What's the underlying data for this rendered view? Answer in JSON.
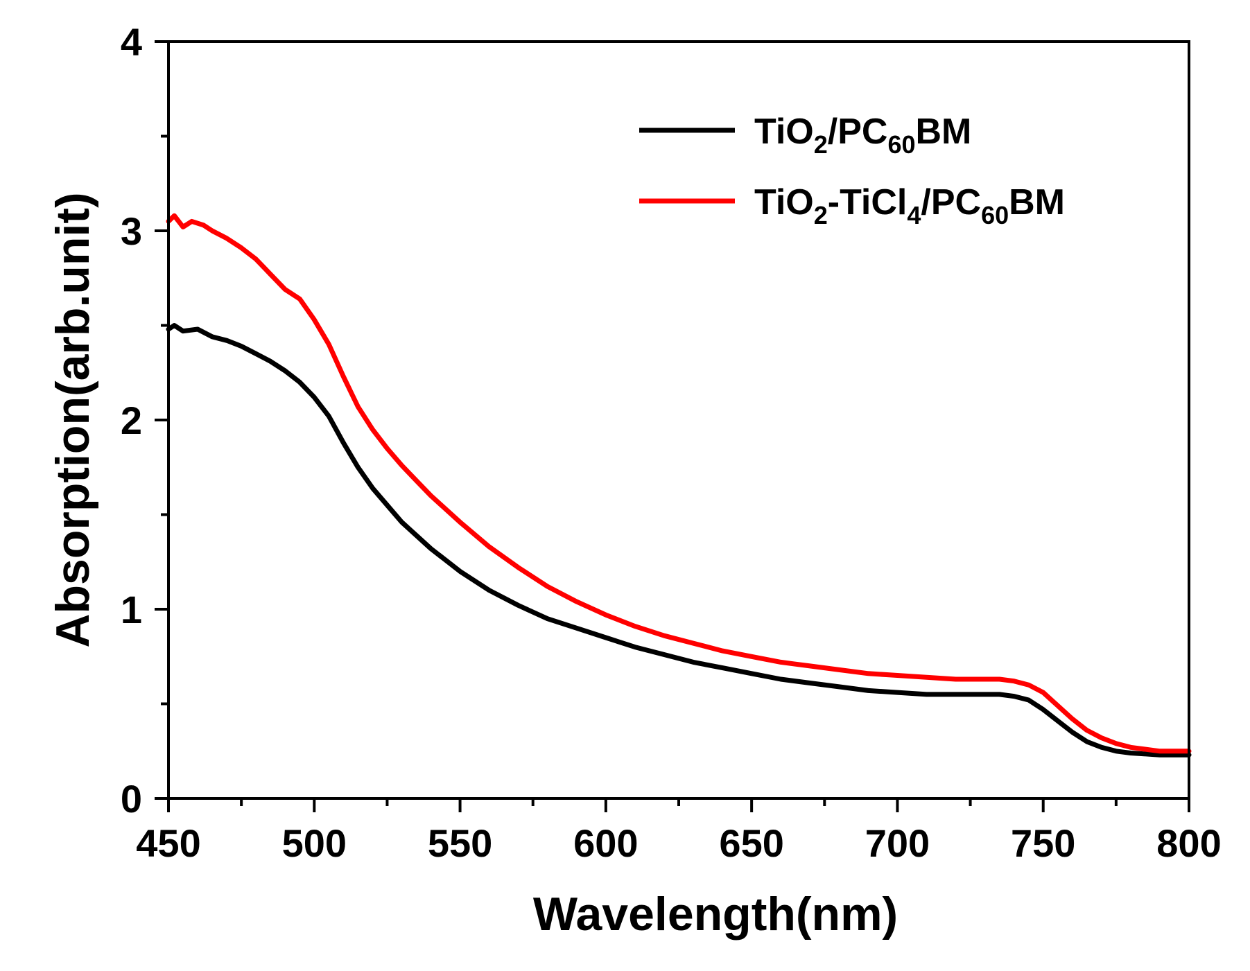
{
  "chart_data": {
    "type": "line",
    "title": "",
    "xlabel": "Wavelength(nm)",
    "ylabel": "Absorption(arb.unit)",
    "xlim": [
      450,
      800
    ],
    "ylim": [
      0,
      4
    ],
    "x_ticks": [
      450,
      500,
      550,
      600,
      650,
      700,
      750,
      800
    ],
    "x_minor_step": 25,
    "y_ticks": [
      0,
      1,
      2,
      3,
      4
    ],
    "y_minor_step": 0.5,
    "grid": false,
    "legend_position": "top-right",
    "series": [
      {
        "name": "TiO2/PC60BM",
        "color": "#000000",
        "legend": [
          {
            "t": "TiO",
            "sub": false
          },
          {
            "t": "2",
            "sub": true
          },
          {
            "t": "/PC",
            "sub": false
          },
          {
            "t": "60",
            "sub": true
          },
          {
            "t": "BM",
            "sub": false
          }
        ],
        "x": [
          450,
          452,
          455,
          460,
          465,
          470,
          475,
          480,
          485,
          490,
          495,
          500,
          505,
          510,
          515,
          520,
          525,
          530,
          535,
          540,
          550,
          560,
          570,
          580,
          590,
          600,
          610,
          620,
          630,
          640,
          650,
          660,
          670,
          680,
          690,
          700,
          710,
          720,
          730,
          735,
          740,
          745,
          750,
          755,
          760,
          765,
          770,
          775,
          780,
          790,
          800
        ],
        "y": [
          2.48,
          2.5,
          2.47,
          2.48,
          2.44,
          2.42,
          2.39,
          2.35,
          2.31,
          2.26,
          2.2,
          2.12,
          2.02,
          1.88,
          1.75,
          1.64,
          1.55,
          1.46,
          1.39,
          1.32,
          1.2,
          1.1,
          1.02,
          0.95,
          0.9,
          0.85,
          0.8,
          0.76,
          0.72,
          0.69,
          0.66,
          0.63,
          0.61,
          0.59,
          0.57,
          0.56,
          0.55,
          0.55,
          0.55,
          0.55,
          0.54,
          0.52,
          0.47,
          0.41,
          0.35,
          0.3,
          0.27,
          0.25,
          0.24,
          0.23,
          0.23
        ]
      },
      {
        "name": "TiO2-TiCl4/PC60BM",
        "color": "#ff0000",
        "legend": [
          {
            "t": "TiO",
            "sub": false
          },
          {
            "t": "2",
            "sub": true
          },
          {
            "t": "-TiCl",
            "sub": false
          },
          {
            "t": "4",
            "sub": true
          },
          {
            "t": "/PC",
            "sub": false
          },
          {
            "t": "60",
            "sub": true
          },
          {
            "t": "BM",
            "sub": false
          }
        ],
        "x": [
          450,
          452,
          455,
          458,
          462,
          465,
          470,
          475,
          480,
          485,
          490,
          495,
          500,
          505,
          510,
          515,
          520,
          525,
          530,
          535,
          540,
          550,
          560,
          570,
          580,
          590,
          600,
          610,
          620,
          630,
          640,
          650,
          660,
          670,
          680,
          690,
          700,
          710,
          720,
          730,
          735,
          740,
          745,
          750,
          755,
          760,
          765,
          770,
          775,
          780,
          790,
          800
        ],
        "y": [
          3.05,
          3.08,
          3.02,
          3.05,
          3.03,
          3.0,
          2.96,
          2.91,
          2.85,
          2.77,
          2.69,
          2.64,
          2.53,
          2.4,
          2.23,
          2.07,
          1.95,
          1.85,
          1.76,
          1.68,
          1.6,
          1.46,
          1.33,
          1.22,
          1.12,
          1.04,
          0.97,
          0.91,
          0.86,
          0.82,
          0.78,
          0.75,
          0.72,
          0.7,
          0.68,
          0.66,
          0.65,
          0.64,
          0.63,
          0.63,
          0.63,
          0.62,
          0.6,
          0.56,
          0.49,
          0.42,
          0.36,
          0.32,
          0.29,
          0.27,
          0.25,
          0.25
        ]
      }
    ]
  }
}
